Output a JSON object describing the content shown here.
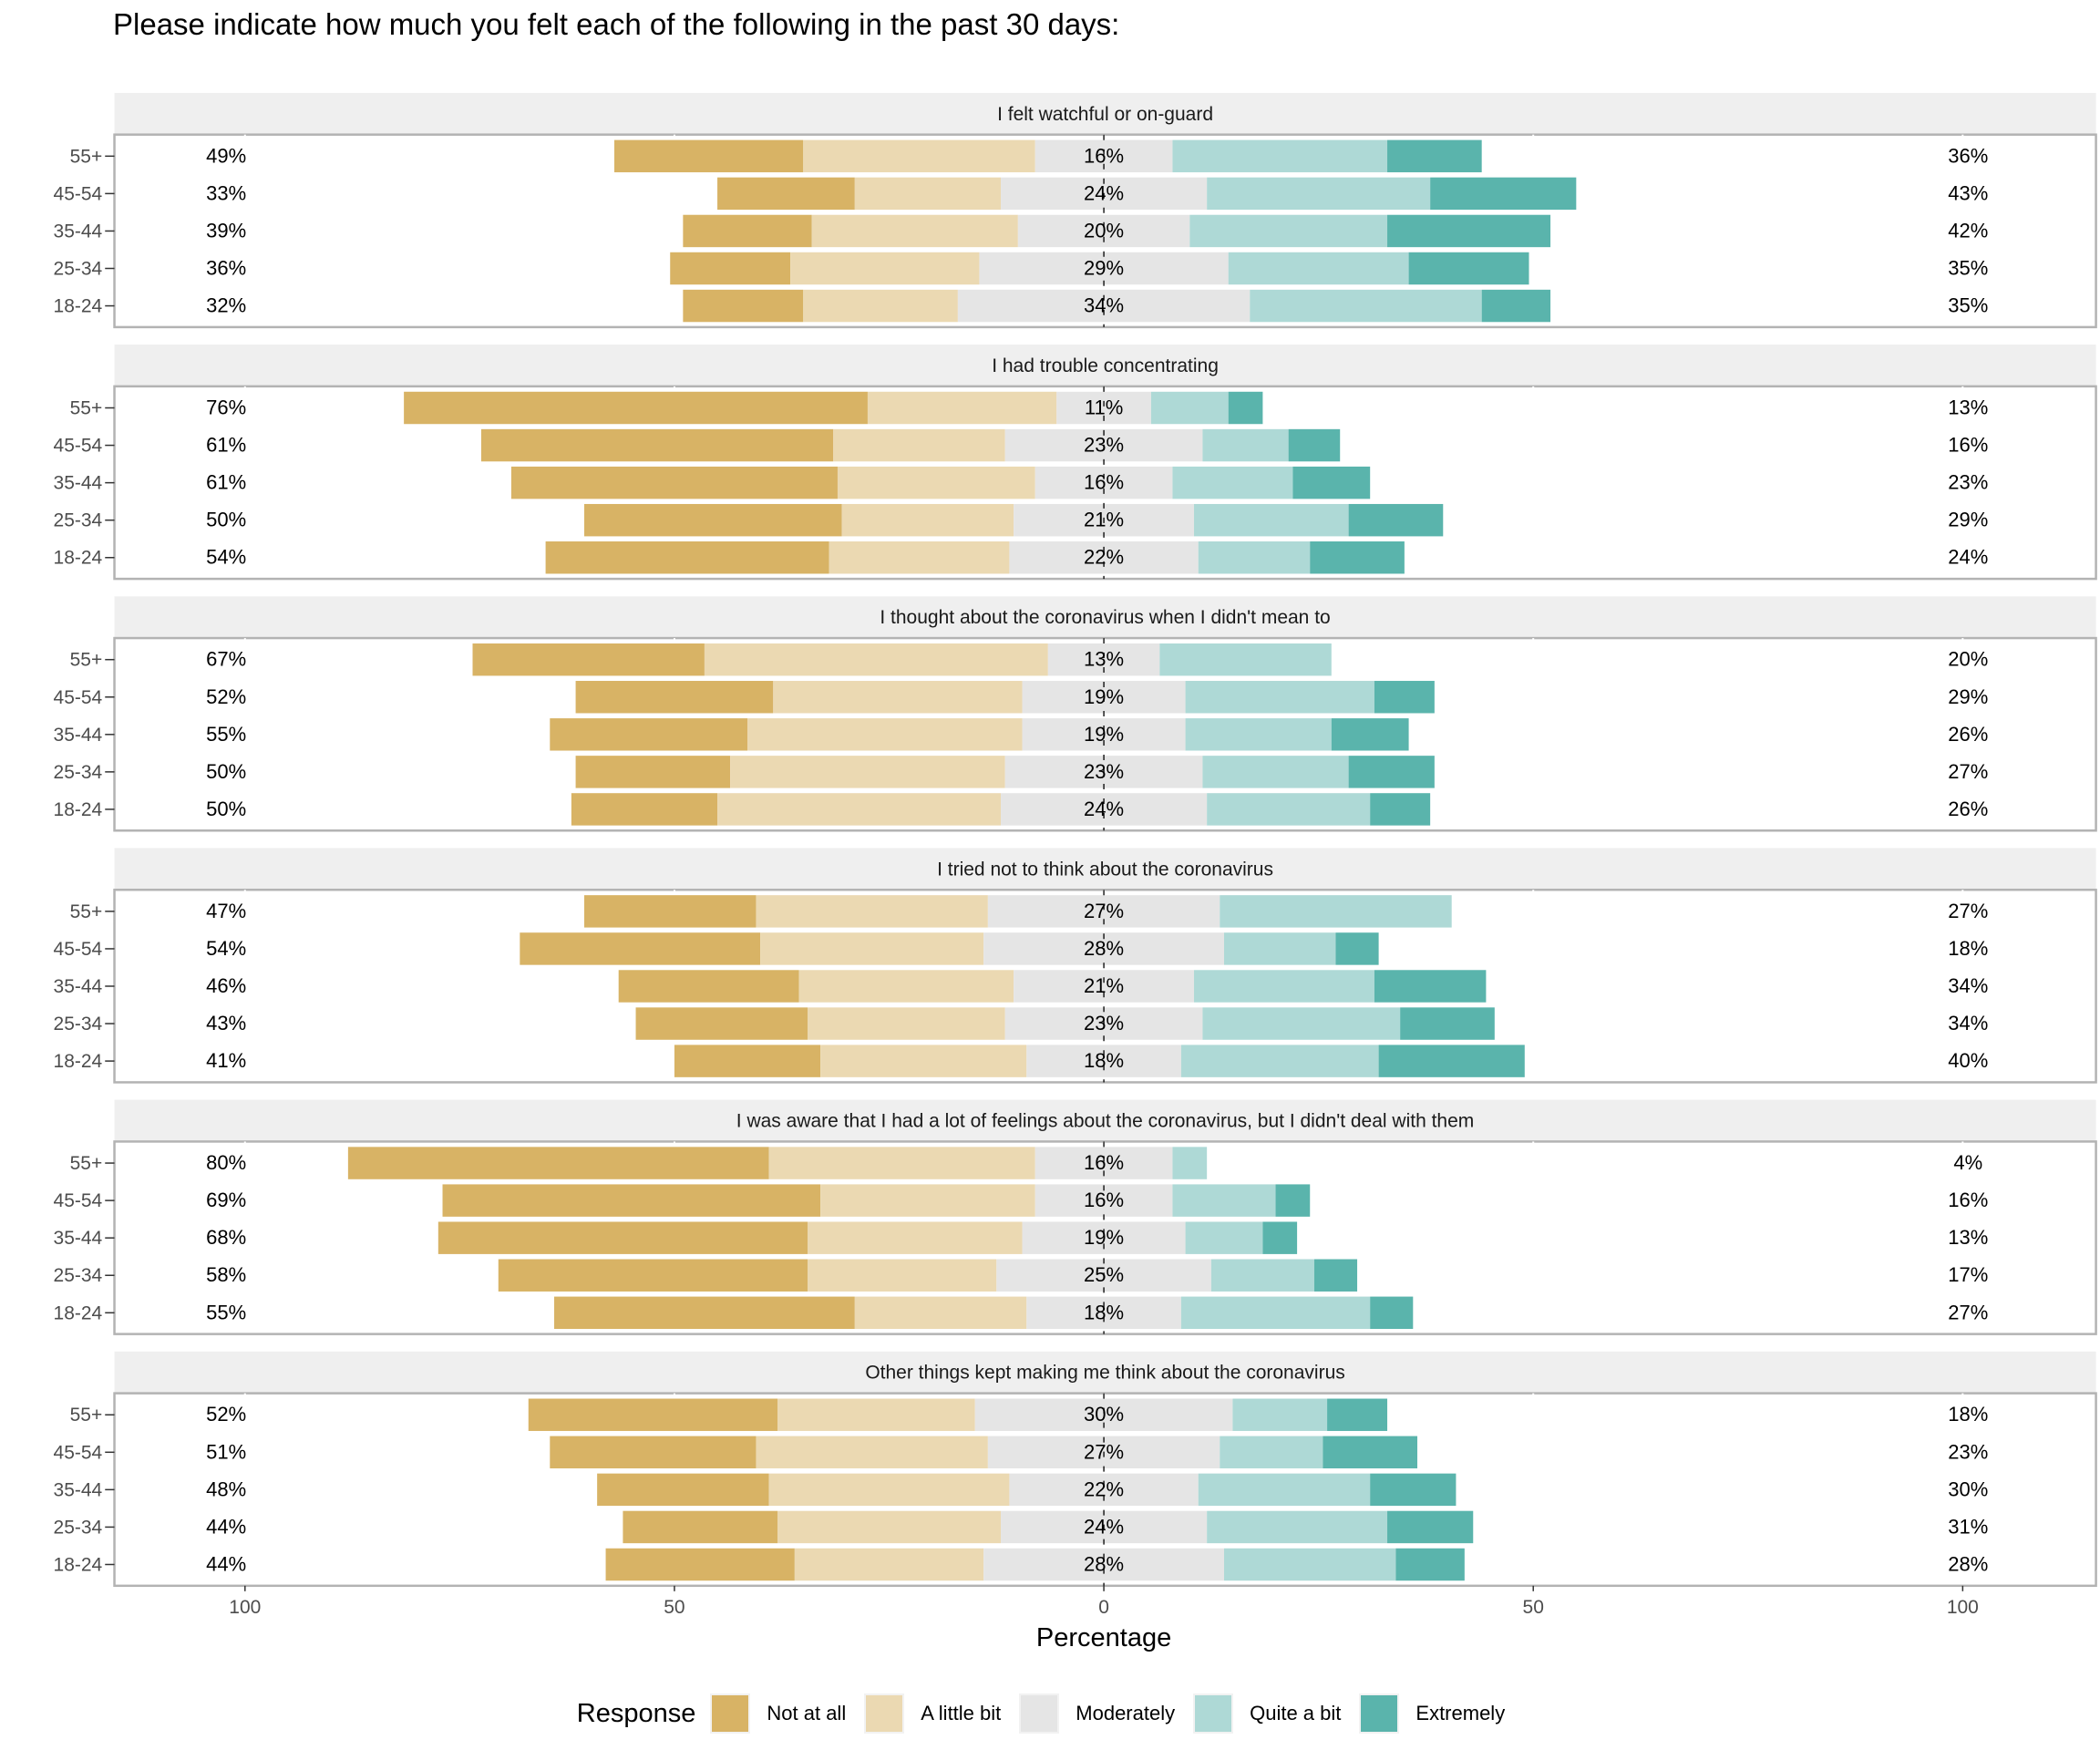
{
  "title": "Please indicate how much you felt each of the following in the past 30 days:",
  "chart_data": {
    "type": "bar",
    "subtype": "diverging-stacked-likert",
    "title": "Please indicate how much you felt each of the following in the past 30 days:",
    "xlabel": "Percentage",
    "ylabel": "",
    "xlim": [
      -100,
      100
    ],
    "x_ticks": [
      -100,
      -50,
      0,
      50,
      100
    ],
    "x_tick_labels": [
      "100",
      "50",
      "0",
      "50",
      "100"
    ],
    "grid": true,
    "legend": {
      "title": "Response",
      "position": "bottom",
      "entries": [
        "Not at all",
        "A little bit",
        "Moderately",
        "Quite a bit",
        "Extremely"
      ]
    },
    "colors": {
      "Not at all": "#d8b365",
      "A little bit": "#ebd9b2",
      "Moderately": "#e5e5e5",
      "Quite a bit": "#aed9d6",
      "Extremely": "#5ab4ac"
    },
    "categories": [
      "55+",
      "45-54",
      "35-44",
      "25-34",
      "18-24"
    ],
    "panels": [
      {
        "title": "I felt watchful or on-guard",
        "rows": [
          {
            "age": "55+",
            "values": [
              22,
              27,
              16,
              25,
              11
            ],
            "low_label": "49%",
            "mid_label": "16%",
            "high_label": "36%"
          },
          {
            "age": "45-54",
            "values": [
              16,
              17,
              24,
              26,
              17
            ],
            "low_label": "33%",
            "mid_label": "24%",
            "high_label": "43%"
          },
          {
            "age": "35-44",
            "values": [
              15,
              24,
              20,
              23,
              19
            ],
            "low_label": "39%",
            "mid_label": "20%",
            "high_label": "42%"
          },
          {
            "age": "25-34",
            "values": [
              14,
              22,
              29,
              21,
              14
            ],
            "low_label": "36%",
            "mid_label": "29%",
            "high_label": "35%"
          },
          {
            "age": "18-24",
            "values": [
              14,
              18,
              34,
              27,
              8
            ],
            "low_label": "32%",
            "mid_label": "34%",
            "high_label": "35%"
          }
        ]
      },
      {
        "title": "I had trouble concentrating",
        "rows": [
          {
            "age": "55+",
            "values": [
              54,
              22,
              11,
              9,
              4
            ],
            "low_label": "76%",
            "mid_label": "11%",
            "high_label": "13%"
          },
          {
            "age": "45-54",
            "values": [
              41,
              20,
              23,
              10,
              6
            ],
            "low_label": "61%",
            "mid_label": "23%",
            "high_label": "16%"
          },
          {
            "age": "35-44",
            "values": [
              38,
              23,
              16,
              14,
              9
            ],
            "low_label": "61%",
            "mid_label": "16%",
            "high_label": "23%"
          },
          {
            "age": "25-34",
            "values": [
              30,
              20,
              21,
              18,
              11
            ],
            "low_label": "50%",
            "mid_label": "21%",
            "high_label": "29%"
          },
          {
            "age": "18-24",
            "values": [
              33,
              21,
              22,
              13,
              11
            ],
            "low_label": "54%",
            "mid_label": "22%",
            "high_label": "24%"
          }
        ]
      },
      {
        "title": "I thought about the coronavirus when I didn't mean to",
        "rows": [
          {
            "age": "55+",
            "values": [
              27,
              40,
              13,
              20,
              0
            ],
            "low_label": "67%",
            "mid_label": "13%",
            "high_label": "20%"
          },
          {
            "age": "45-54",
            "values": [
              23,
              29,
              19,
              22,
              7
            ],
            "low_label": "52%",
            "mid_label": "19%",
            "high_label": "29%"
          },
          {
            "age": "35-44",
            "values": [
              23,
              32,
              19,
              17,
              9
            ],
            "low_label": "55%",
            "mid_label": "19%",
            "high_label": "26%"
          },
          {
            "age": "25-34",
            "values": [
              18,
              32,
              23,
              17,
              10
            ],
            "low_label": "50%",
            "mid_label": "23%",
            "high_label": "27%"
          },
          {
            "age": "18-24",
            "values": [
              17,
              33,
              24,
              19,
              7
            ],
            "low_label": "50%",
            "mid_label": "24%",
            "high_label": "26%"
          }
        ]
      },
      {
        "title": "I tried not to think about the coronavirus",
        "rows": [
          {
            "age": "55+",
            "values": [
              20,
              27,
              27,
              27,
              0
            ],
            "low_label": "47%",
            "mid_label": "27%",
            "high_label": "27%"
          },
          {
            "age": "45-54",
            "values": [
              28,
              26,
              28,
              13,
              5
            ],
            "low_label": "54%",
            "mid_label": "28%",
            "high_label": "18%"
          },
          {
            "age": "35-44",
            "values": [
              21,
              25,
              21,
              21,
              13
            ],
            "low_label": "46%",
            "mid_label": "21%",
            "high_label": "34%"
          },
          {
            "age": "25-34",
            "values": [
              20,
              23,
              23,
              23,
              11
            ],
            "low_label": "43%",
            "mid_label": "23%",
            "high_label": "34%"
          },
          {
            "age": "18-24",
            "values": [
              17,
              24,
              18,
              23,
              17
            ],
            "low_label": "41%",
            "mid_label": "18%",
            "high_label": "40%"
          }
        ]
      },
      {
        "title": "I was aware that I had a lot of feelings about the coronavirus, but I didn't deal with them",
        "rows": [
          {
            "age": "55+",
            "values": [
              49,
              31,
              16,
              4,
              0
            ],
            "low_label": "80%",
            "mid_label": "16%",
            "high_label": "4%"
          },
          {
            "age": "45-54",
            "values": [
              44,
              25,
              16,
              12,
              4
            ],
            "low_label": "69%",
            "mid_label": "16%",
            "high_label": "16%"
          },
          {
            "age": "35-44",
            "values": [
              43,
              25,
              19,
              9,
              4
            ],
            "low_label": "68%",
            "mid_label": "19%",
            "high_label": "13%"
          },
          {
            "age": "25-34",
            "values": [
              36,
              22,
              25,
              12,
              5
            ],
            "low_label": "58%",
            "mid_label": "25%",
            "high_label": "17%"
          },
          {
            "age": "18-24",
            "values": [
              35,
              20,
              18,
              22,
              5
            ],
            "low_label": "55%",
            "mid_label": "18%",
            "high_label": "27%"
          }
        ]
      },
      {
        "title": "Other things kept making me think about the coronavirus",
        "rows": [
          {
            "age": "55+",
            "values": [
              29,
              23,
              30,
              11,
              7
            ],
            "low_label": "52%",
            "mid_label": "30%",
            "high_label": "18%"
          },
          {
            "age": "45-54",
            "values": [
              24,
              27,
              27,
              12,
              11
            ],
            "low_label": "51%",
            "mid_label": "27%",
            "high_label": "23%"
          },
          {
            "age": "35-44",
            "values": [
              20,
              28,
              22,
              20,
              10
            ],
            "low_label": "48%",
            "mid_label": "22%",
            "high_label": "30%"
          },
          {
            "age": "25-34",
            "values": [
              18,
              26,
              24,
              21,
              10
            ],
            "low_label": "44%",
            "mid_label": "24%",
            "high_label": "31%"
          },
          {
            "age": "18-24",
            "values": [
              22,
              22,
              28,
              20,
              8
            ],
            "low_label": "44%",
            "mid_label": "28%",
            "high_label": "28%"
          }
        ]
      }
    ]
  }
}
